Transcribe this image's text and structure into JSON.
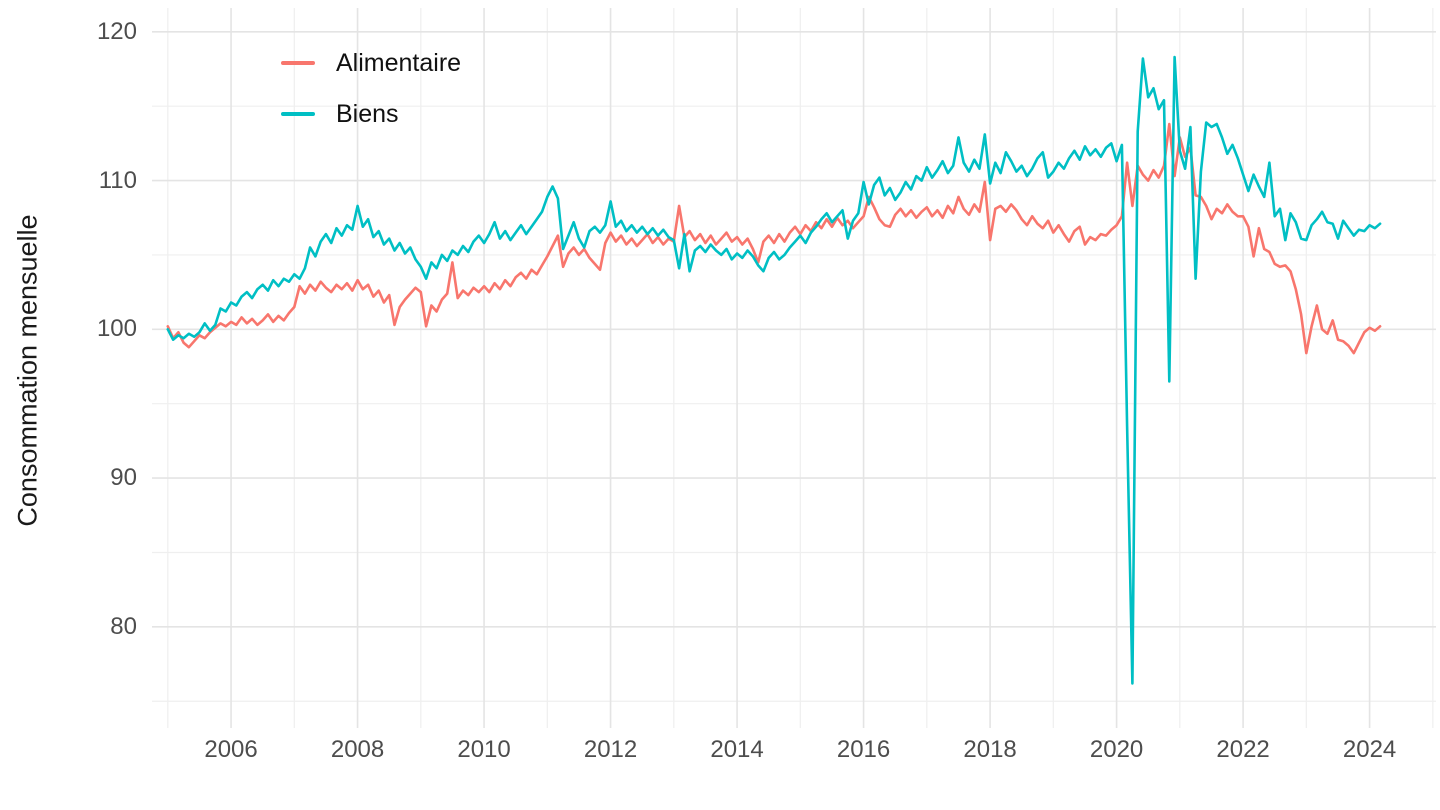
{
  "figure": {
    "background": "#ffffff",
    "grid_major_color": "#e4e4e4",
    "grid_minor_color": "#efefef",
    "axis_text_color": "#4d4d4d",
    "y_axis": {
      "title": "Consommation mensuelle",
      "tick_labels": [
        "120",
        "110",
        "100",
        "90",
        "80"
      ],
      "tick_values": [
        120,
        110,
        100,
        90,
        80
      ],
      "minor_values": [
        115,
        105,
        95,
        85,
        75
      ]
    },
    "x_axis": {
      "tick_labels": [
        "2006",
        "2008",
        "2010",
        "2012",
        "2014",
        "2016",
        "2018",
        "2020",
        "2022",
        "2024"
      ],
      "tick_values": [
        2006,
        2008,
        2010,
        2012,
        2014,
        2016,
        2018,
        2020,
        2022,
        2024
      ],
      "minor_values": [
        2005,
        2007,
        2009,
        2011,
        2013,
        2015,
        2017,
        2019,
        2021,
        2023,
        2025
      ]
    },
    "legend": {
      "items": [
        {
          "label": "Alimentaire",
          "color": "#F8766D"
        },
        {
          "label": "Biens",
          "color": "#00BFC4"
        }
      ]
    }
  },
  "chart_data": {
    "type": "line",
    "title": "",
    "xlabel": "",
    "ylabel": "Consommation mensuelle",
    "legend_position": "inside-top-left",
    "grid": true,
    "x_start_year": 2005,
    "x_start_month": 1,
    "frequency": "monthly",
    "x_range_years": [
      2004.75,
      2025.05
    ],
    "ylim": [
      73.2,
      121.6
    ],
    "y_major_ticks": [
      80,
      90,
      100,
      110,
      120
    ],
    "series": [
      {
        "name": "Alimentaire",
        "color": "#F8766D",
        "values": [
          100.2,
          99.4,
          99.8,
          99.1,
          98.8,
          99.2,
          99.6,
          99.4,
          99.8,
          100.1,
          100.4,
          100.2,
          100.5,
          100.3,
          100.8,
          100.4,
          100.7,
          100.3,
          100.6,
          101.0,
          100.5,
          100.9,
          100.6,
          101.1,
          101.5,
          102.9,
          102.4,
          103.0,
          102.6,
          103.2,
          102.8,
          102.5,
          103.0,
          102.7,
          103.1,
          102.6,
          103.3,
          102.7,
          103.0,
          102.2,
          102.6,
          101.8,
          102.3,
          100.3,
          101.5,
          102.0,
          102.4,
          102.8,
          102.5,
          100.2,
          101.6,
          101.2,
          102.0,
          102.4,
          104.5,
          102.1,
          102.6,
          102.3,
          102.8,
          102.5,
          102.9,
          102.5,
          103.1,
          102.7,
          103.3,
          102.9,
          103.5,
          103.8,
          103.4,
          104.0,
          103.7,
          104.3,
          104.9,
          105.6,
          106.3,
          104.2,
          105.1,
          105.5,
          105.0,
          105.4,
          104.8,
          104.4,
          104.0,
          105.8,
          106.5,
          105.9,
          106.3,
          105.7,
          106.1,
          105.6,
          106.0,
          106.4,
          105.8,
          106.2,
          105.7,
          106.1,
          105.9,
          108.3,
          106.2,
          106.6,
          106.0,
          106.4,
          105.8,
          106.3,
          105.7,
          106.1,
          106.5,
          105.9,
          106.2,
          105.7,
          106.1,
          105.4,
          104.5,
          105.9,
          106.3,
          105.8,
          106.4,
          105.9,
          106.5,
          106.9,
          106.4,
          107.0,
          106.6,
          107.2,
          106.8,
          107.4,
          106.9,
          107.5,
          107.0,
          107.3,
          106.8,
          107.2,
          107.6,
          108.9,
          108.2,
          107.4,
          107.0,
          106.9,
          107.7,
          108.1,
          107.6,
          108.0,
          107.5,
          107.9,
          108.2,
          107.6,
          108.0,
          107.5,
          108.3,
          107.8,
          108.9,
          108.1,
          107.7,
          108.4,
          107.9,
          109.9,
          106.0,
          108.1,
          108.3,
          107.9,
          108.4,
          108.0,
          107.4,
          107.0,
          107.6,
          107.1,
          106.8,
          107.3,
          106.5,
          107.0,
          106.4,
          105.9,
          106.6,
          106.9,
          105.7,
          106.2,
          106.0,
          106.4,
          106.3,
          106.7,
          107.0,
          107.6,
          111.2,
          108.3,
          111.0,
          110.4,
          110.0,
          110.7,
          110.2,
          111.0,
          113.8,
          110.3,
          112.9,
          111.6,
          112.2,
          109.0,
          108.9,
          108.3,
          107.4,
          108.1,
          107.8,
          108.4,
          107.9,
          107.6,
          107.6,
          106.9,
          104.9,
          106.8,
          105.4,
          105.2,
          104.4,
          104.2,
          104.3,
          103.9,
          102.7,
          101.0,
          98.4,
          100.2,
          101.6,
          100.0,
          99.7,
          100.6,
          99.3,
          99.2,
          98.9,
          98.4,
          99.1,
          99.8,
          100.1,
          99.9,
          100.2
        ]
      },
      {
        "name": "Biens",
        "color": "#00BFC4",
        "values": [
          100.0,
          99.3,
          99.6,
          99.4,
          99.7,
          99.5,
          99.8,
          100.4,
          99.9,
          100.3,
          101.4,
          101.2,
          101.8,
          101.6,
          102.2,
          102.5,
          102.1,
          102.7,
          103.0,
          102.6,
          103.3,
          102.9,
          103.4,
          103.2,
          103.7,
          103.4,
          104.1,
          105.5,
          104.9,
          105.9,
          106.4,
          105.8,
          106.8,
          106.3,
          107.0,
          106.7,
          108.3,
          106.9,
          107.4,
          106.2,
          106.6,
          105.7,
          106.1,
          105.3,
          105.8,
          105.1,
          105.5,
          104.7,
          104.2,
          103.4,
          104.5,
          104.1,
          105.0,
          104.6,
          105.3,
          105.0,
          105.6,
          105.2,
          105.9,
          106.3,
          105.8,
          106.4,
          107.2,
          106.1,
          106.6,
          106.0,
          106.5,
          107.0,
          106.4,
          106.9,
          107.4,
          107.9,
          108.9,
          109.6,
          108.8,
          105.4,
          106.3,
          107.2,
          106.1,
          105.5,
          106.6,
          106.9,
          106.5,
          107.0,
          108.6,
          106.9,
          107.3,
          106.6,
          107.0,
          106.5,
          106.9,
          106.4,
          106.8,
          106.3,
          106.7,
          106.2,
          106.0,
          104.1,
          106.4,
          103.9,
          105.3,
          105.6,
          105.2,
          105.7,
          105.3,
          105.0,
          105.4,
          104.7,
          105.1,
          104.8,
          105.3,
          104.9,
          104.3,
          103.9,
          104.8,
          105.2,
          104.7,
          105.0,
          105.5,
          105.9,
          106.3,
          105.8,
          106.5,
          106.9,
          107.4,
          107.8,
          107.2,
          107.6,
          108.0,
          106.1,
          107.3,
          107.8,
          109.9,
          108.4,
          109.7,
          110.2,
          109.0,
          109.5,
          108.7,
          109.2,
          109.9,
          109.4,
          110.3,
          110.0,
          110.9,
          110.2,
          110.7,
          111.3,
          110.5,
          111.0,
          112.9,
          111.2,
          110.6,
          111.4,
          110.8,
          113.1,
          109.8,
          111.2,
          110.5,
          111.9,
          111.3,
          110.6,
          111.0,
          110.3,
          110.8,
          111.5,
          111.9,
          110.2,
          110.6,
          111.2,
          110.8,
          111.5,
          112.0,
          111.4,
          112.3,
          111.7,
          112.1,
          111.6,
          112.2,
          112.5,
          111.3,
          112.4,
          93.5,
          76.2,
          113.3,
          118.2,
          115.6,
          116.2,
          114.8,
          115.4,
          96.5,
          118.3,
          112.0,
          110.8,
          113.6,
          103.4,
          110.6,
          113.9,
          113.6,
          113.8,
          112.9,
          111.8,
          112.4,
          111.5,
          110.4,
          109.3,
          110.4,
          109.6,
          108.9,
          111.2,
          107.6,
          108.1,
          106.0,
          107.8,
          107.2,
          106.1,
          106.0,
          107.0,
          107.4,
          107.9,
          107.2,
          107.1,
          106.1,
          107.3,
          106.8,
          106.3,
          106.7,
          106.6,
          107.0,
          106.8,
          107.1
        ]
      }
    ]
  }
}
